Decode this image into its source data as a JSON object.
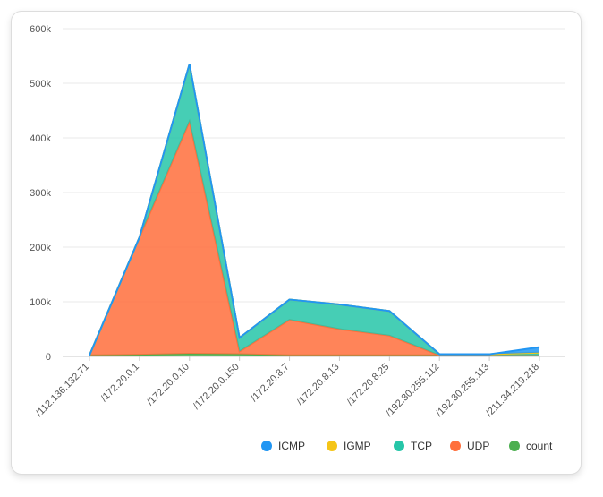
{
  "chart_data": {
    "type": "area",
    "stacked": true,
    "categories": [
      "/112.136.132.71",
      "/172.20.0.1",
      "/172.20.0.10",
      "/172.20.0.150",
      "/172.20.8.7",
      "/172.20.8.13",
      "/172.20.8.25",
      "/192.30.255.112",
      "/192.30.255.113",
      "/211.34.219.218"
    ],
    "ylim": [
      0,
      600000
    ],
    "yticks": [
      0,
      100000,
      200000,
      300000,
      400000,
      500000,
      600000
    ],
    "ytick_labels": [
      "0",
      "100k",
      "200k",
      "300k",
      "400k",
      "500k",
      "600k"
    ],
    "grid": true,
    "legend_position": "bottom-right",
    "series": [
      {
        "name": "count",
        "color": "#4caf50",
        "values": [
          2000,
          3000,
          5000,
          4000,
          2000,
          2000,
          2000,
          2000,
          2000,
          2000
        ]
      },
      {
        "name": "UDP",
        "color": "#ff6f3c",
        "values": [
          0,
          215000,
          425000,
          5000,
          65000,
          48000,
          36000,
          0,
          0,
          0
        ]
      },
      {
        "name": "TCP",
        "color": "#26c6a8",
        "values": [
          0,
          0,
          105000,
          25000,
          37000,
          45000,
          45000,
          2000,
          2000,
          5000
        ]
      },
      {
        "name": "IGMP",
        "color": "#f5c518",
        "values": [
          0,
          0,
          0,
          0,
          0,
          0,
          0,
          0,
          0,
          0
        ]
      },
      {
        "name": "ICMP",
        "color": "#2196f3",
        "values": [
          0,
          0,
          0,
          0,
          0,
          0,
          0,
          0,
          0,
          10000
        ]
      }
    ],
    "legend": [
      {
        "name": "ICMP",
        "color": "#2196f3"
      },
      {
        "name": "IGMP",
        "color": "#f5c518"
      },
      {
        "name": "TCP",
        "color": "#26c6a8"
      },
      {
        "name": "UDP",
        "color": "#ff6f3c"
      },
      {
        "name": "count",
        "color": "#4caf50"
      }
    ]
  }
}
